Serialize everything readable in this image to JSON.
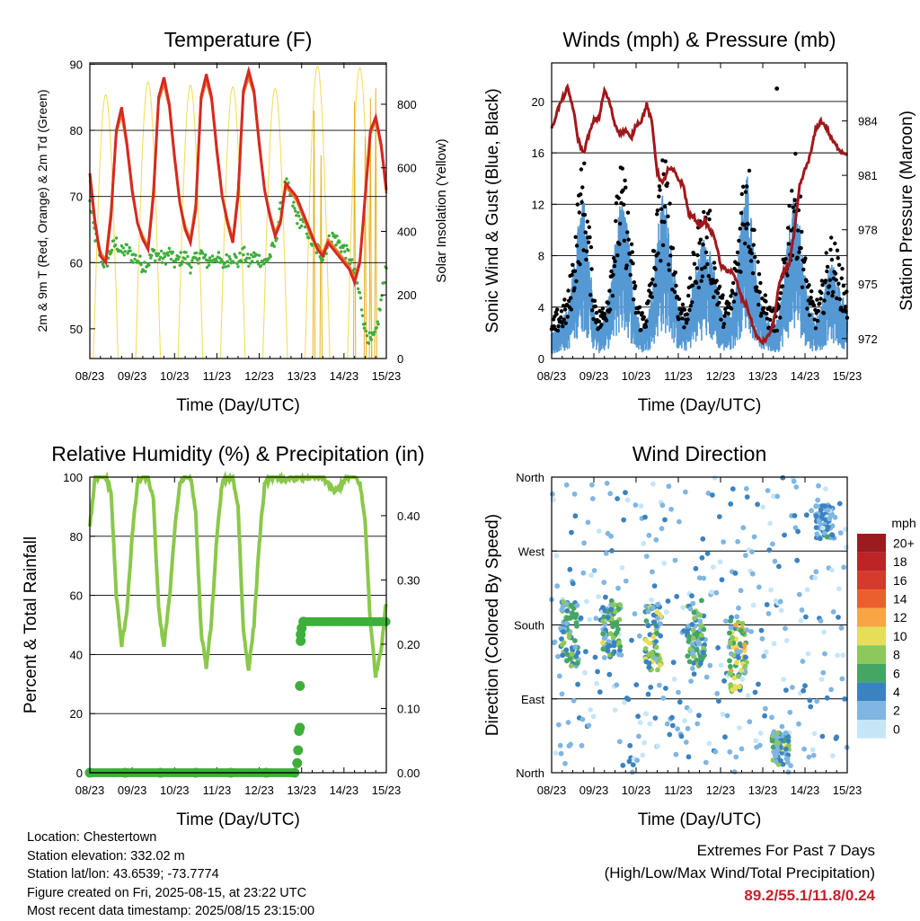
{
  "colors": {
    "temp_2m": "#d42a22",
    "temp_9m": "#f07a28",
    "dewpoint": "#3fae3c",
    "solar": "#f6dc5c",
    "sonic": "#5599d4",
    "gust": "#000000",
    "pressure": "#a0181c",
    "rh": "#8ac84a",
    "precip": "#3fae3c",
    "extremes": "#c8202a"
  },
  "chart_data": [
    {
      "type": "line",
      "title": "Temperature (F)",
      "xlabel": "Time (Day/UTC)",
      "ylabel": "2m & 9m T (Red, Orange) & 2m Td (Green)",
      "y2label": "Solar Insolation (Yellow)",
      "x_ticks": [
        "08/23",
        "09/23",
        "10/23",
        "11/23",
        "12/23",
        "13/23",
        "14/23",
        "15/23"
      ],
      "y_ticks": [
        50,
        60,
        70,
        80,
        90
      ],
      "y2_ticks": [
        0,
        200,
        400,
        600,
        800
      ],
      "ylim": [
        45.5,
        90.2
      ],
      "y2lim": [
        0,
        930
      ],
      "grid_y": [
        60,
        70,
        80,
        90
      ],
      "x_hours": [
        0,
        3,
        6,
        9,
        12,
        15,
        18,
        21,
        24,
        27,
        30,
        33,
        36,
        39,
        42,
        45,
        48,
        51,
        54,
        57,
        60,
        63,
        66,
        69,
        72,
        75,
        78,
        81,
        84,
        87,
        90,
        93,
        96,
        99,
        102,
        105,
        108,
        111,
        114,
        117,
        120,
        123,
        126,
        129,
        132,
        135,
        138,
        141,
        144,
        147,
        150,
        153,
        156,
        159,
        162,
        165,
        168
      ],
      "series": [
        {
          "name": "2m T",
          "values": [
            73.5,
            66,
            61,
            60,
            67,
            80,
            83.5,
            78,
            71,
            66,
            63.5,
            62,
            70,
            85,
            88,
            84,
            76,
            69,
            65,
            63,
            68,
            85,
            88.5,
            85,
            77,
            70,
            66,
            63,
            70,
            86,
            89,
            86,
            78,
            71,
            67,
            64,
            66,
            72,
            71,
            70,
            68,
            66,
            64,
            62,
            61,
            63,
            62,
            61,
            60,
            59,
            57,
            60,
            70,
            80,
            82,
            78,
            71
          ]
        },
        {
          "name": "9m T",
          "values": [
            72.5,
            65.5,
            61.5,
            60.5,
            68,
            79.5,
            82.5,
            77.5,
            70.5,
            66,
            64,
            62.5,
            71,
            84.5,
            87,
            83.5,
            75.5,
            69,
            65.5,
            63.5,
            69,
            84.5,
            87.5,
            84.5,
            76.5,
            70,
            66.5,
            63.5,
            71,
            85.5,
            88,
            85.5,
            77.5,
            71,
            67.5,
            64.5,
            66.5,
            71.5,
            70.5,
            69.5,
            67.5,
            65.5,
            63.5,
            62.5,
            61.5,
            63.5,
            62.5,
            61.5,
            60.5,
            59.5,
            57.5,
            60.5,
            69.5,
            79.5,
            81.5,
            77.5,
            70.5
          ]
        },
        {
          "name": "2m Td",
          "values": [
            69,
            64,
            61,
            59.5,
            62,
            63,
            61.5,
            62,
            61,
            60.5,
            59.5,
            60,
            61.5,
            61,
            60.5,
            61.5,
            60,
            60.5,
            61,
            59.5,
            60.5,
            61.5,
            60,
            60.5,
            61,
            59.5,
            60.5,
            61,
            60,
            61.5,
            60,
            61,
            60.5,
            60,
            61,
            63,
            68,
            72,
            70,
            67,
            66,
            65,
            63,
            62,
            61,
            63,
            64,
            63,
            62,
            61,
            58,
            55,
            50,
            48,
            49,
            54,
            60
          ]
        },
        {
          "name": "Solar",
          "peaks": [
            {
              "h": 9,
              "v": 830
            },
            {
              "h": 33,
              "v": 870
            },
            {
              "h": 57,
              "v": 860
            },
            {
              "h": 81,
              "v": 855
            },
            {
              "h": 105,
              "v": 850
            },
            {
              "h": 129,
              "v": 920
            },
            {
              "h": 153,
              "v": 915
            }
          ],
          "extra_spikes": [
            {
              "h": 127,
              "v": 780
            },
            {
              "h": 131,
              "v": 640
            },
            {
              "h": 150,
              "v": 810
            },
            {
              "h": 156,
              "v": 700
            },
            {
              "h": 159,
              "v": 820
            },
            {
              "h": 162,
              "v": 850
            }
          ]
        }
      ]
    },
    {
      "type": "line",
      "title": "Winds (mph) & Pressure (mb)",
      "xlabel": "Time (Day/UTC)",
      "ylabel": "Sonic Wind & Gust (Blue, Black)",
      "y2label": "Station Pressure (Maroon)",
      "x_ticks": [
        "08/23",
        "09/23",
        "10/23",
        "11/23",
        "12/23",
        "13/23",
        "14/23",
        "15/23"
      ],
      "y_ticks": [
        0,
        4,
        8,
        12,
        16,
        20
      ],
      "y2_ticks": [
        972,
        975,
        978,
        981,
        984
      ],
      "ylim": [
        0,
        23
      ],
      "y2lim": [
        970.9,
        987.2
      ],
      "grid_y": [
        4,
        8,
        12,
        16,
        20,
        23
      ],
      "x_hours": [
        0,
        3,
        6,
        9,
        12,
        15,
        18,
        21,
        24,
        27,
        30,
        33,
        36,
        39,
        42,
        45,
        48,
        51,
        54,
        57,
        60,
        63,
        66,
        69,
        72,
        75,
        78,
        81,
        84,
        87,
        90,
        93,
        96,
        99,
        102,
        105,
        108,
        111,
        114,
        117,
        120,
        123,
        126,
        129,
        132,
        135,
        138,
        141,
        144,
        147,
        150,
        153,
        156,
        159,
        162,
        165,
        168
      ],
      "series": [
        {
          "name": "Sonic Wind",
          "values": [
            1.5,
            2,
            2.5,
            3,
            5,
            8,
            10,
            7,
            3,
            2,
            2.5,
            4,
            7,
            9.5,
            9,
            6,
            3,
            2,
            2.5,
            4,
            7.5,
            10,
            9,
            6,
            3,
            2.5,
            3,
            5,
            6.5,
            7.5,
            7,
            5,
            3,
            2.5,
            3,
            5,
            9,
            11.5,
            8,
            5,
            3,
            2.5,
            2,
            2.5,
            5,
            8,
            10,
            8.5,
            5,
            3,
            2.5,
            3,
            5,
            6,
            5,
            4,
            3
          ]
        },
        {
          "name": "Gust",
          "values": [
            2.5,
            3.5,
            4,
            4.5,
            7.5,
            12,
            15,
            10.5,
            5,
            3.5,
            4,
            6.5,
            10.5,
            14,
            13,
            9,
            5,
            3.5,
            4,
            7,
            11,
            15,
            13.5,
            9,
            5,
            4,
            5,
            8,
            10,
            11.5,
            10.5,
            7.5,
            5,
            4,
            5,
            8,
            13,
            16,
            11.5,
            7.5,
            5,
            4,
            3.5,
            4,
            7.5,
            12,
            15,
            12.5,
            7.5,
            5,
            4,
            5,
            7.5,
            9,
            8,
            6.5,
            5
          ]
        },
        {
          "name": "Pressure",
          "values": [
            983.5,
            984.5,
            985.2,
            985.8,
            984.8,
            983.0,
            982.2,
            983.2,
            984.0,
            984.2,
            985.7,
            985.0,
            983.8,
            983.3,
            983.5,
            983.0,
            983.8,
            984.0,
            984.9,
            983.9,
            981.2,
            980.5,
            981.3,
            981.3,
            980.8,
            980.4,
            978.8,
            978.7,
            978.2,
            978.5,
            978.0,
            977.5,
            976.0,
            975.8,
            975.7,
            975.2,
            974.2,
            973.8,
            972.8,
            972.0,
            971.8,
            972.1,
            972.8,
            974.8,
            975.7,
            976.1,
            977.9,
            980.4,
            981.3,
            982.1,
            983.5,
            984.0,
            983.7,
            983.0,
            982.6,
            982.3,
            982.2
          ]
        },
        {
          "name": "Gust outlier",
          "points": [
            {
              "h": 128,
              "v": 21
            }
          ]
        }
      ]
    },
    {
      "type": "line",
      "title": "Relative Humidity (%) & Precipitation (in)",
      "xlabel": "Time (Day/UTC)",
      "ylabel": "Percent & Total Rainfall",
      "x_ticks": [
        "08/23",
        "09/23",
        "10/23",
        "11/23",
        "12/23",
        "13/23",
        "14/23",
        "15/23"
      ],
      "y_ticks": [
        0,
        20,
        40,
        60,
        80,
        100
      ],
      "y2_ticks": [
        "0.00",
        "0.10",
        "0.20",
        "0.30",
        "0.40"
      ],
      "ylim": [
        0,
        100
      ],
      "y2lim": [
        0,
        0.46
      ],
      "grid_y": [
        20,
        40,
        60,
        80,
        100
      ],
      "x_hours": [
        0,
        3,
        6,
        9,
        12,
        15,
        18,
        21,
        24,
        27,
        30,
        33,
        36,
        39,
        42,
        45,
        48,
        51,
        54,
        57,
        60,
        63,
        66,
        69,
        72,
        75,
        78,
        81,
        84,
        87,
        90,
        93,
        96,
        99,
        102,
        105,
        108,
        111,
        114,
        117,
        120,
        123,
        126,
        129,
        132,
        135,
        138,
        141,
        144,
        147,
        150,
        153,
        156,
        159,
        162,
        165,
        168
      ],
      "series": [
        {
          "name": "RH",
          "values": [
            83,
            100,
            100,
            100,
            95,
            60,
            43,
            55,
            80,
            98,
            100,
            100,
            92,
            55,
            43,
            58,
            82,
            98,
            100,
            100,
            88,
            48,
            35,
            52,
            80,
            98,
            100,
            100,
            90,
            48,
            35,
            50,
            78,
            97,
            100,
            100,
            100,
            98,
            100,
            100,
            100,
            100,
            100,
            100,
            100,
            98,
            95,
            96,
            99,
            100,
            100,
            98,
            85,
            50,
            33,
            42,
            58
          ]
        },
        {
          "name": "Precip",
          "points": [
            [
              0,
              0
            ],
            [
              20,
              0
            ],
            [
              40,
              0
            ],
            [
              60,
              0
            ],
            [
              80,
              0
            ],
            [
              100,
              0
            ],
            [
              116,
              0
            ],
            [
              117.5,
              0.015
            ],
            [
              118,
              0.035
            ],
            [
              118.5,
              0.065
            ],
            [
              119,
              0.07
            ],
            [
              119,
              0.135
            ],
            [
              119.5,
              0.205
            ],
            [
              119.5,
              0.215
            ],
            [
              120,
              0.225
            ],
            [
              121,
              0.235
            ]
          ],
          "final": 0.235,
          "final_from": 121,
          "final_to": 168
        }
      ]
    },
    {
      "type": "scatter",
      "title": "Wind Direction",
      "xlabel": "Time (Day/UTC)",
      "ylabel": "Direction (Colored By Speed)",
      "x_ticks": [
        "08/23",
        "09/23",
        "10/23",
        "11/23",
        "12/23",
        "13/23",
        "14/23",
        "15/23"
      ],
      "y_ticks": [
        "North",
        "East",
        "South",
        "West",
        "North"
      ],
      "y_values": [
        0,
        90,
        180,
        270,
        360
      ],
      "ylim": [
        0,
        360
      ],
      "grid_y": [
        90,
        180,
        270
      ],
      "legend": {
        "title": "mph",
        "placement": "right",
        "labels": [
          "20+",
          "18",
          "16",
          "14",
          "12",
          "10",
          "8",
          "6",
          "4",
          "2",
          "0"
        ],
        "colors": [
          "#9b1c1f",
          "#be2326",
          "#d63a2d",
          "#ea5f2c",
          "#f7a545",
          "#e6dd5a",
          "#8cc85a",
          "#45a563",
          "#3b82c0",
          "#7fb6e2",
          "#c6e6f7"
        ]
      },
      "clusters": [
        {
          "center_h": 10,
          "center_dir": 170,
          "spread_dir": 40,
          "speed": 7
        },
        {
          "center_h": 34,
          "center_dir": 175,
          "spread_dir": 35,
          "speed": 7
        },
        {
          "center_h": 58,
          "center_dir": 165,
          "spread_dir": 40,
          "speed": 8
        },
        {
          "center_h": 82,
          "center_dir": 170,
          "spread_dir": 40,
          "speed": 7
        },
        {
          "center_h": 106,
          "center_dir": 140,
          "spread_dir": 45,
          "speed": 9
        },
        {
          "center_h": 130,
          "center_dir": 30,
          "spread_dir": 20,
          "speed": 7
        },
        {
          "center_h": 155,
          "center_dir": 305,
          "spread_dir": 20,
          "speed": 4
        }
      ]
    }
  ],
  "info": {
    "location": "Location: Chestertown",
    "elevation": "Station elevation: 332.02 m",
    "latlon": "Station lat/lon: 43.6539; -73.7774",
    "created": "Figure created on Fri, 2025-08-15, at 23:22 UTC",
    "recent": "Most recent data timestamp: 2025/08/15 23:15:00"
  },
  "extremes": {
    "line1": "Extremes For Past 7 Days",
    "line2": "(High/Low/Max Wind/Total Precipitation)",
    "values": "89.2/55.1/11.8/0.24"
  }
}
